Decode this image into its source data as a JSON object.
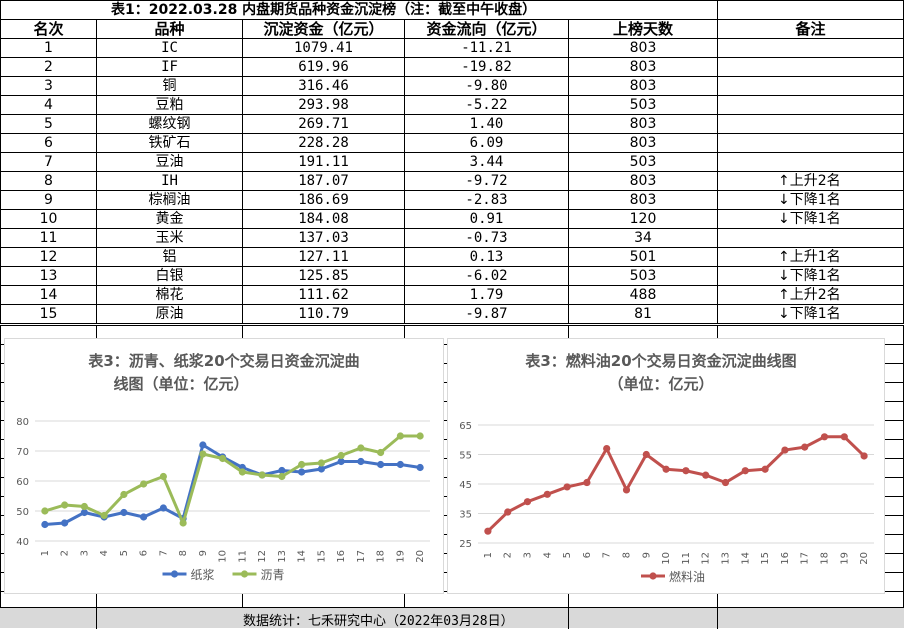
{
  "table": {
    "title": "表1：2022.03.28 内盘期货品种资金沉淀榜（注：截至中午收盘）",
    "headers": [
      "名次",
      "品种",
      "沉淀资金（亿元）",
      "资金流向（亿元）",
      "上榜天数",
      "备注"
    ],
    "rows": [
      {
        "rank": "1",
        "name": "IC",
        "amount": "1079.41",
        "flow": "-11.21",
        "days": "803",
        "note": ""
      },
      {
        "rank": "2",
        "name": "IF",
        "amount": "619.96",
        "flow": "-19.82",
        "days": "803",
        "note": ""
      },
      {
        "rank": "3",
        "name": "铜",
        "amount": "316.46",
        "flow": "-9.80",
        "days": "803",
        "note": ""
      },
      {
        "rank": "4",
        "name": "豆粕",
        "amount": "293.98",
        "flow": "-5.22",
        "days": "503",
        "note": ""
      },
      {
        "rank": "5",
        "name": "螺纹钢",
        "amount": "269.71",
        "flow": "1.40",
        "days": "803",
        "note": ""
      },
      {
        "rank": "6",
        "name": "铁矿石",
        "amount": "228.28",
        "flow": "6.09",
        "days": "803",
        "note": ""
      },
      {
        "rank": "7",
        "name": "豆油",
        "amount": "191.11",
        "flow": "3.44",
        "days": "503",
        "note": ""
      },
      {
        "rank": "8",
        "name": "IH",
        "amount": "187.07",
        "flow": "-9.72",
        "days": "803",
        "note": "↑上升2名"
      },
      {
        "rank": "9",
        "name": "棕榈油",
        "amount": "186.69",
        "flow": "-2.83",
        "days": "803",
        "note": "↓下降1名"
      },
      {
        "rank": "10",
        "name": "黄金",
        "amount": "184.08",
        "flow": "0.91",
        "days": "120",
        "note": "↓下降1名"
      },
      {
        "rank": "11",
        "name": "玉米",
        "amount": "137.03",
        "flow": "-0.73",
        "days": "34",
        "note": ""
      },
      {
        "rank": "12",
        "name": "铝",
        "amount": "127.11",
        "flow": "0.13",
        "days": "501",
        "note": "↑上升1名"
      },
      {
        "rank": "13",
        "name": "白银",
        "amount": "125.85",
        "flow": "-6.02",
        "days": "503",
        "note": "↓下降1名"
      },
      {
        "rank": "14",
        "name": "棉花",
        "amount": "111.62",
        "flow": "1.79",
        "days": "488",
        "note": "↑上升2名"
      },
      {
        "rank": "15",
        "name": "原油",
        "amount": "110.79",
        "flow": "-9.87",
        "days": "81",
        "note": "↓下降1名"
      }
    ]
  },
  "chart_data": [
    {
      "type": "line",
      "title": "表3：沥青、纸浆20个交易日资金沉淀曲线图（单位：亿元）",
      "title_lines": [
        "表3：沥青、纸浆20个交易日资金沉淀曲",
        "线图（单位：亿元）"
      ],
      "x": [
        "1",
        "2",
        "3",
        "4",
        "5",
        "6",
        "7",
        "8",
        "9",
        "10",
        "11",
        "12",
        "13",
        "14",
        "15",
        "16",
        "17",
        "18",
        "19",
        "20"
      ],
      "ylim": [
        40,
        80
      ],
      "yticks": [
        "40",
        "50",
        "60",
        "70",
        "80"
      ],
      "grid": true,
      "legend_position": "bottom",
      "series": [
        {
          "name": "纸浆",
          "color": "#4472c4",
          "values": [
            45.5,
            46,
            49.5,
            48,
            49.5,
            48,
            51,
            47.5,
            72,
            68,
            64.5,
            62,
            63.5,
            63,
            64,
            66.5,
            66.5,
            65.5,
            65.5,
            64.5
          ]
        },
        {
          "name": "沥青",
          "color": "#9bbb59",
          "values": [
            50,
            52,
            51.5,
            48.5,
            55.5,
            59,
            61.5,
            46,
            69,
            67.5,
            63,
            62,
            61.5,
            65.5,
            66,
            68.5,
            71,
            69.5,
            75,
            75
          ]
        }
      ]
    },
    {
      "type": "line",
      "title": "表3：燃料油20个交易日资金沉淀曲线图（单位：亿元）",
      "title_lines": [
        "表3：燃料油20个交易日资金沉淀曲线图",
        "（单位：亿元）"
      ],
      "x": [
        "1",
        "2",
        "3",
        "4",
        "5",
        "6",
        "7",
        "8",
        "9",
        "10",
        "11",
        "12",
        "13",
        "14",
        "15",
        "16",
        "17",
        "18",
        "19",
        "20"
      ],
      "ylim": [
        25,
        65
      ],
      "yticks": [
        "25",
        "35",
        "45",
        "55",
        "65"
      ],
      "grid": true,
      "legend_position": "bottom",
      "series": [
        {
          "name": "燃料油",
          "color": "#c0504d",
          "values": [
            29,
            35.5,
            39,
            41.5,
            44,
            45.5,
            57,
            43,
            55,
            50,
            49.5,
            48,
            45.5,
            49.5,
            50,
            56.5,
            57.5,
            61,
            61,
            54.5
          ]
        }
      ]
    }
  ],
  "footer": {
    "text": "数据统计：七禾研究中心（2022年03月28日）"
  }
}
